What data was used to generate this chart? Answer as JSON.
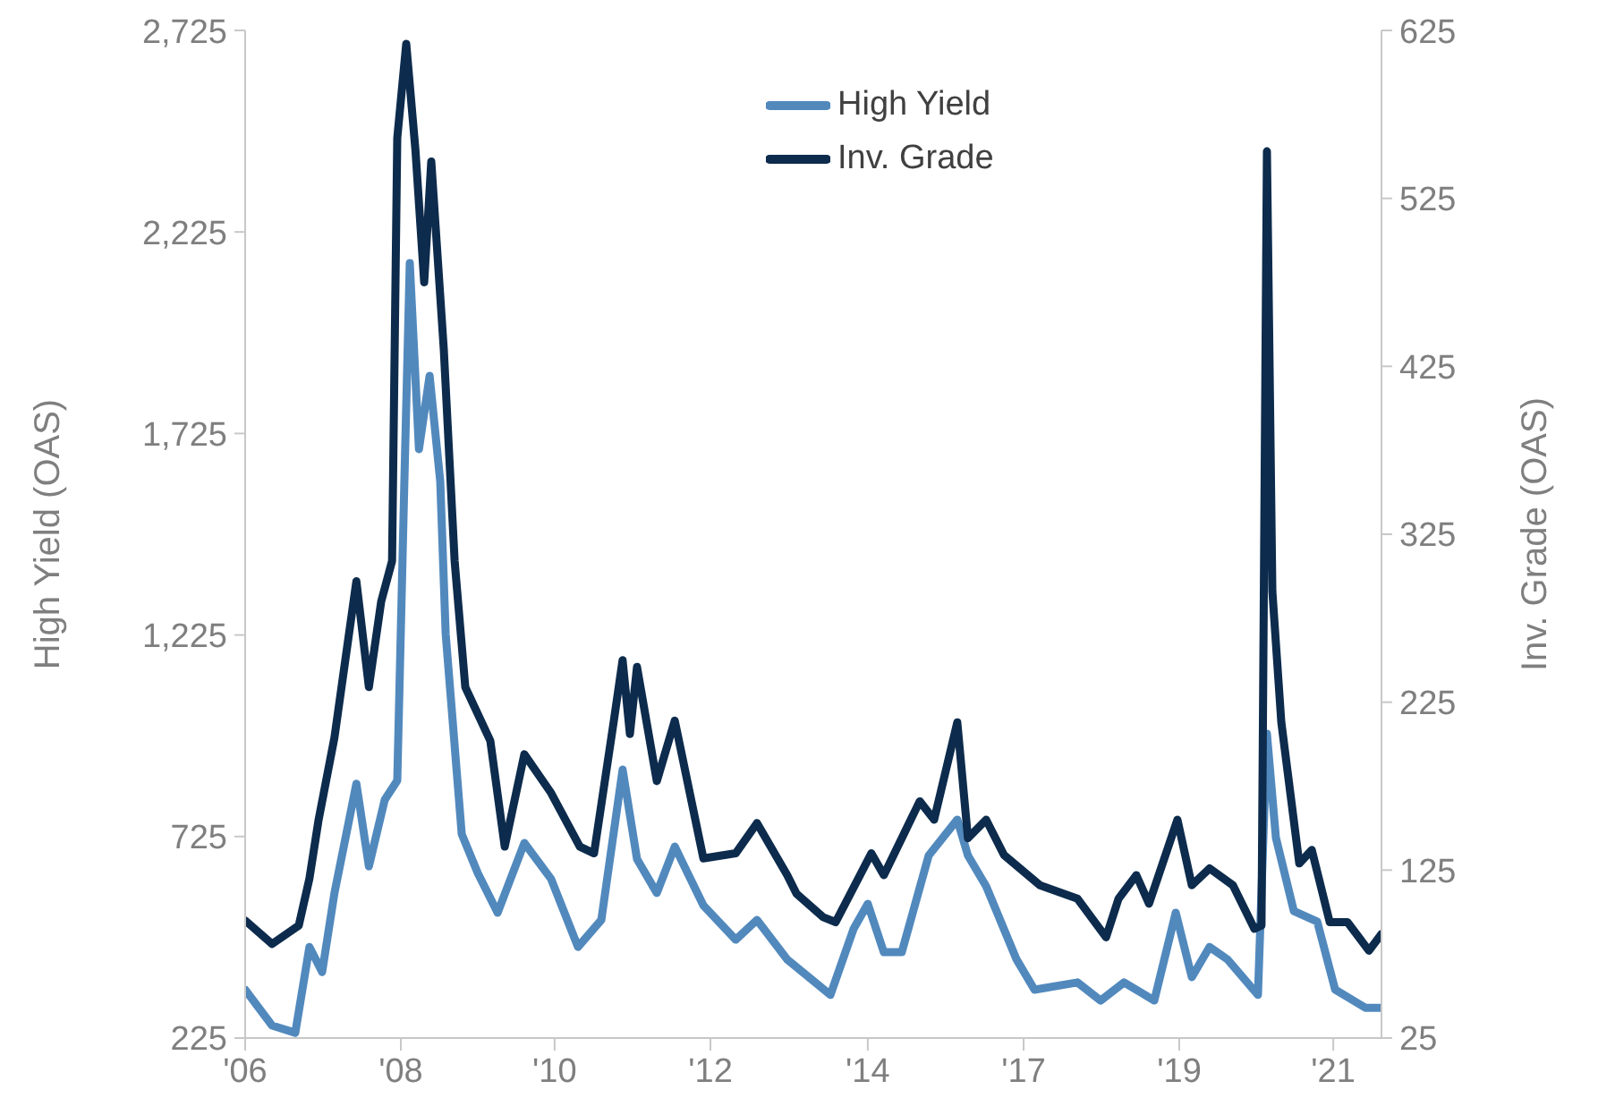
{
  "chart_data": {
    "type": "line",
    "ylabel": "High Yield (OAS)",
    "y2label": "Inv. Grade (OAS)",
    "xlim": [
      "2006-10-23",
      "2021-09-20"
    ],
    "xticks": [
      {
        "value": "2006-10-23",
        "label": "'06"
      },
      {
        "value": "2008-11-07",
        "label": "'08"
      },
      {
        "value": "2010-11-14",
        "label": "'10"
      },
      {
        "value": "2012-11-30",
        "label": "'12"
      },
      {
        "value": "2014-12-24",
        "label": "'14"
      },
      {
        "value": "2017-01-09",
        "label": "'17"
      },
      {
        "value": "2019-01-25",
        "label": "'19"
      },
      {
        "value": "2021-02-01",
        "label": "'21"
      }
    ],
    "ylim": [
      225,
      2725
    ],
    "yticks": [
      {
        "value": 225,
        "label": "225"
      },
      {
        "value": 725,
        "label": "725"
      },
      {
        "value": 1225,
        "label": "1,225"
      },
      {
        "value": 1725,
        "label": "1,725"
      },
      {
        "value": 2225,
        "label": "2,225"
      },
      {
        "value": 2725,
        "label": "2,725"
      }
    ],
    "y2lim": [
      25,
      625
    ],
    "y2ticks": [
      25,
      125,
      225,
      325,
      425,
      525,
      625
    ],
    "grid": false,
    "legend": "top",
    "marker": "none",
    "line_style": "solid",
    "series": [
      {
        "name": "High Yield",
        "color": "#5289bd",
        "x": [
          "2006-10-23",
          "2007-03-01",
          "2007-06-20",
          "2007-08-27",
          "2007-10-27",
          "2007-12-25",
          "2008-04-08",
          "2008-06-07",
          "2008-08-22",
          "2008-10-21",
          "2008-11-24",
          "2008-12-20",
          "2009-02-02",
          "2009-03-25",
          "2009-05-15",
          "2009-06-10",
          "2009-08-26",
          "2009-11-11",
          "2010-02-14",
          "2010-06-22",
          "2010-10-28",
          "2011-03-06",
          "2011-06-26",
          "2011-10-06",
          "2011-12-14",
          "2012-03-18",
          "2012-06-12",
          "2012-10-27",
          "2013-03-31",
          "2013-07-11",
          "2013-12-03",
          "2014-06-28",
          "2014-10-17",
          "2014-12-24",
          "2015-03-11",
          "2015-06-05",
          "2015-10-12",
          "2016-02-26",
          "2016-04-17",
          "2016-07-13",
          "2016-12-06",
          "2017-03-02",
          "2017-09-24",
          "2018-01-13",
          "2018-05-05",
          "2018-09-27",
          "2019-01-08",
          "2019-03-26",
          "2019-06-19",
          "2019-09-13",
          "2020-02-06",
          "2020-03-20",
          "2020-05-02",
          "2020-07-27",
          "2020-11-16",
          "2021-02-10",
          "2021-07-05",
          "2021-09-20"
        ],
        "values": [
          345,
          256,
          238,
          451,
          389,
          585,
          856,
          651,
          816,
          864,
          1606,
          2148,
          1686,
          1868,
          1606,
          1228,
          731,
          634,
          536,
          709,
          620,
          451,
          518,
          891,
          669,
          585,
          700,
          554,
          469,
          518,
          420,
          332,
          496,
          558,
          438,
          438,
          678,
          767,
          678,
          602,
          420,
          345,
          363,
          318,
          363,
          318,
          536,
          376,
          451,
          420,
          332,
          980,
          722,
          540,
          514,
          345,
          300,
          300
        ]
      },
      {
        "name": "Inv. Grade",
        "color": "#0d2b4c",
        "axis": "y2",
        "x": [
          "2006-10-23",
          "2007-03-01",
          "2007-07-07",
          "2007-08-27",
          "2007-10-10",
          "2007-12-25",
          "2008-04-08",
          "2008-06-07",
          "2008-08-05",
          "2008-09-26",
          "2008-10-21",
          "2008-12-03",
          "2009-01-16",
          "2009-02-27",
          "2009-04-02",
          "2009-06-01",
          "2009-07-23",
          "2009-09-12",
          "2010-01-10",
          "2010-03-20",
          "2010-06-22",
          "2010-10-28",
          "2011-03-15",
          "2011-05-22",
          "2011-08-25",
          "2011-10-06",
          "2011-11-10",
          "2011-12-14",
          "2012-03-18",
          "2012-06-12",
          "2012-10-27",
          "2013-03-31",
          "2013-07-11",
          "2013-12-03",
          "2014-01-16",
          "2014-05-24",
          "2014-07-23",
          "2015-01-10",
          "2015-03-11",
          "2015-08-30",
          "2015-11-07",
          "2016-02-26",
          "2016-04-17",
          "2016-07-13",
          "2016-10-07",
          "2017-03-28",
          "2017-09-24",
          "2018-02-08",
          "2018-04-09",
          "2018-07-03",
          "2018-09-02",
          "2019-01-16",
          "2019-03-26",
          "2019-06-19",
          "2019-10-09",
          "2020-01-20",
          "2020-02-23",
          "2020-03-20",
          "2020-04-15",
          "2020-05-28",
          "2020-08-22",
          "2020-10-21",
          "2021-01-15",
          "2021-04-10",
          "2021-07-22",
          "2021-09-20"
        ],
        "values": [
          95,
          81,
          92,
          120,
          155,
          204,
          297,
          234,
          285,
          309,
          561,
          617,
          554,
          475,
          547,
          435,
          309,
          234,
          202,
          139,
          194,
          171,
          139,
          135,
          214,
          250,
          206,
          246,
          178,
          214,
          132,
          135,
          153,
          122,
          111,
          97,
          94,
          135,
          122,
          166,
          155,
          213,
          144,
          155,
          134,
          116,
          108,
          85,
          108,
          122,
          105,
          155,
          116,
          126,
          116,
          90,
          92,
          553,
          291,
          213,
          129,
          137,
          94,
          94,
          77,
          87
        ]
      }
    ]
  }
}
